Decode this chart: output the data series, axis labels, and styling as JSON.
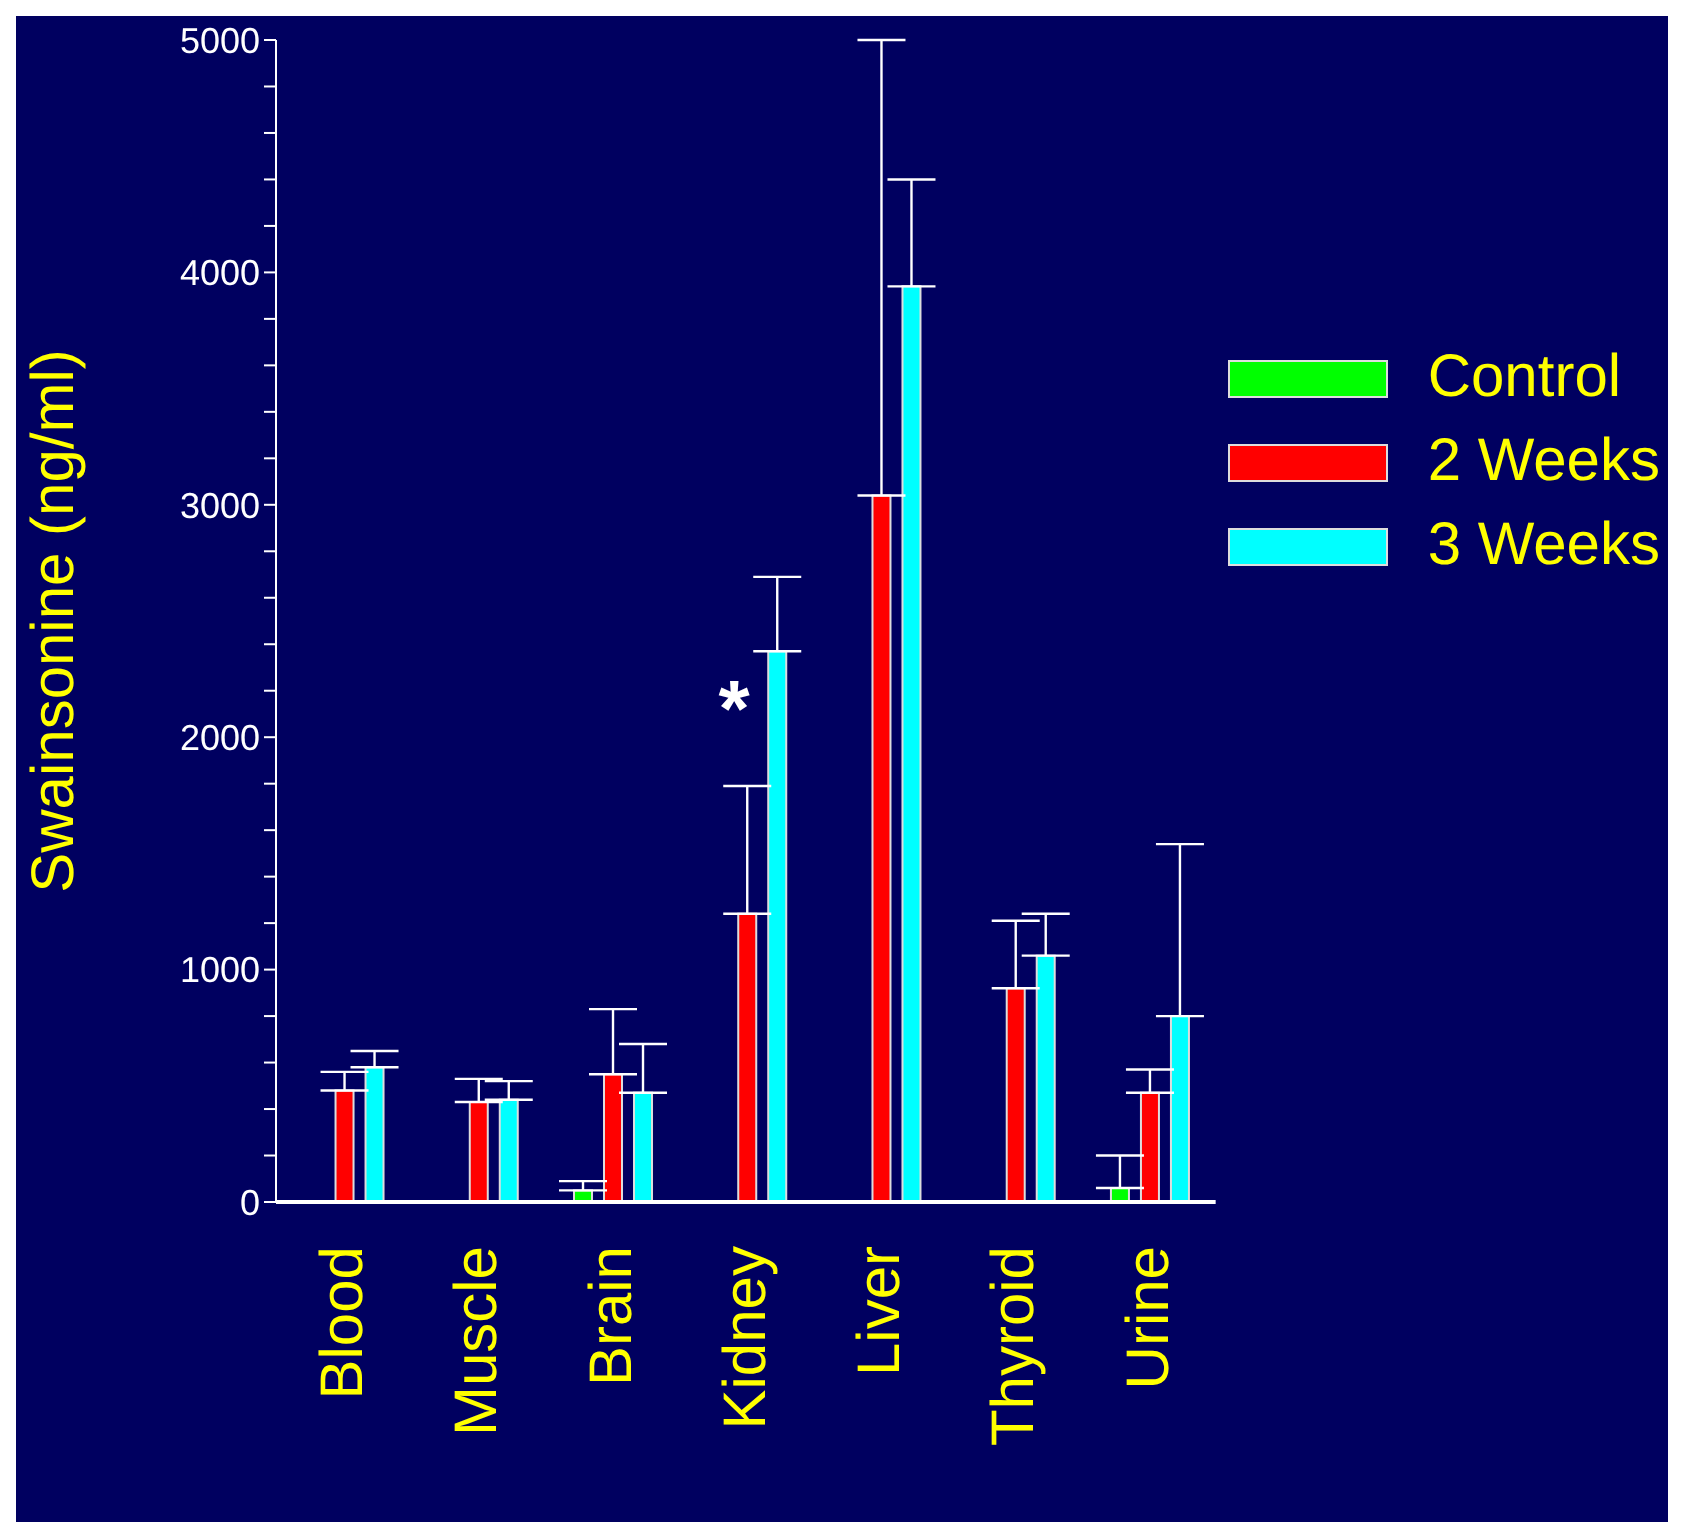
{
  "chart_data": {
    "type": "bar",
    "ylabel": "Swainsonine (ng/ml)",
    "categories": [
      "Blood",
      "Muscle",
      "Brain",
      "Kidney",
      "Liver",
      "Thyroid",
      "Urine"
    ],
    "series": [
      {
        "name": "Control",
        "color": "#00ff00",
        "values": [
          null,
          null,
          50,
          null,
          null,
          null,
          60
        ],
        "errors": [
          null,
          null,
          [
            50,
            90
          ],
          null,
          null,
          null,
          [
            60,
            200
          ]
        ]
      },
      {
        "name": "2 Weeks",
        "color": "#ff0000",
        "values": [
          480,
          430,
          550,
          1240,
          3040,
          920,
          470
        ],
        "errors": [
          [
            480,
            560
          ],
          [
            430,
            530
          ],
          [
            550,
            830
          ],
          [
            1240,
            1790
          ],
          [
            3040,
            5000
          ],
          [
            920,
            1210
          ],
          [
            470,
            570
          ]
        ]
      },
      {
        "name": "3 Weeks",
        "color": "#00ffff",
        "values": [
          580,
          440,
          470,
          2370,
          3940,
          1060,
          800
        ],
        "errors": [
          [
            580,
            650
          ],
          [
            440,
            520
          ],
          [
            470,
            680
          ],
          [
            2370,
            2690
          ],
          [
            3940,
            4400
          ],
          [
            1060,
            1240
          ],
          [
            800,
            1540
          ]
        ]
      }
    ],
    "ylim": [
      0,
      5000
    ],
    "yticks": [
      0,
      {
        "value": 200,
        "label": null
      },
      {
        "value": 400,
        "label": null
      },
      {
        "value": 600,
        "label": null
      },
      {
        "value": 800,
        "label": null
      },
      1000,
      {
        "value": 1200,
        "label": null
      },
      {
        "value": 1400,
        "label": null
      },
      {
        "value": 1600,
        "label": null
      },
      {
        "value": 1800,
        "label": null
      },
      2000,
      {
        "value": 2200,
        "label": null
      },
      {
        "value": 2400,
        "label": null
      },
      {
        "value": 2600,
        "label": null
      },
      {
        "value": 2800,
        "label": null
      },
      3000,
      {
        "value": 3200,
        "label": null
      },
      {
        "value": 3400,
        "label": null
      },
      {
        "value": 3600,
        "label": null
      },
      {
        "value": 3800,
        "label": null
      },
      4000,
      {
        "value": 4200,
        "label": null
      },
      {
        "value": 4400,
        "label": null
      },
      {
        "value": 4600,
        "label": null
      },
      {
        "value": 4800,
        "label": null
      },
      5000
    ],
    "annotations": [
      "*"
    ],
    "grid": false,
    "legend": "top right"
  }
}
